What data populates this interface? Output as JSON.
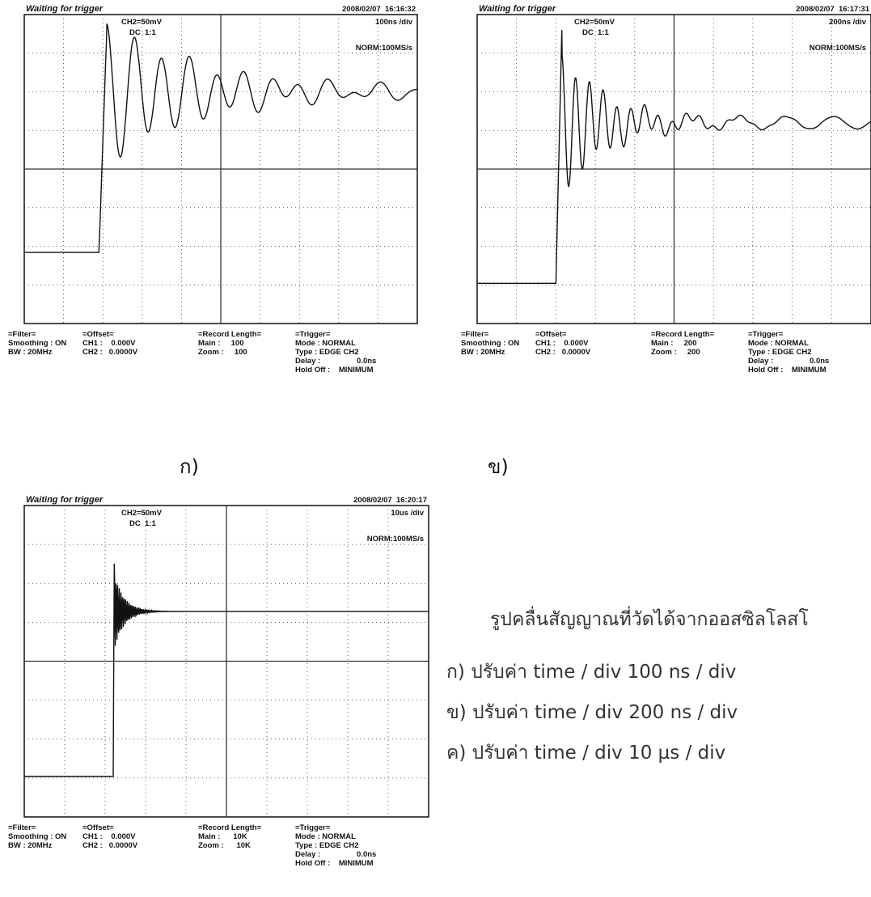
{
  "panels": [
    {
      "status": "Waiting for trigger",
      "datetime": "2008/02/07  16:16:32",
      "channel": "CH2=50mV",
      "coupling": "DC  1:1",
      "timebase": "100ns /div",
      "sampling": "NORM:100MS/s",
      "filter": [
        "=Filter=",
        "Smoothing : ON",
        "BW : 20MHz"
      ],
      "offset": [
        "=Offset=",
        "CH1 :    0.000V",
        "CH2 :   0.0000V"
      ],
      "record": [
        "=Record Length=",
        "Main :     100",
        "Zoom :     100"
      ],
      "trigger": [
        "=Trigger=",
        "Mode : NORMAL",
        "Type : EDGE CH2",
        "Delay :                 0.0ns",
        "Hold Off :    MINIMUM"
      ],
      "label": "ก)"
    },
    {
      "status": "Waiting for trigger",
      "datetime": "2008/02/07  16:17:31",
      "channel": "CH2=50mV",
      "coupling": "DC  1:1",
      "timebase": "200ns /div",
      "sampling": "NORM:100MS/s",
      "filter": [
        "=Filter=",
        "Smoothing : ON",
        "BW : 20MHz"
      ],
      "offset": [
        "=Offset=",
        "CH1 :    0.000V",
        "CH2 :   0.0000V"
      ],
      "record": [
        "=Record Length=",
        "Main :     200",
        "Zoom :     200"
      ],
      "trigger": [
        "=Trigger=",
        "Mode : NORMAL",
        "Type : EDGE CH2",
        "Delay :                 0.0ns",
        "Hold Off :    MINIMUM"
      ],
      "label": "ข)"
    },
    {
      "status": "Waiting for trigger",
      "datetime": "2008/02/07  16:20:17",
      "channel": "CH2=50mV",
      "coupling": "DC  1:1",
      "timebase": "10us /div",
      "sampling": "NORM:100MS/s",
      "filter": [
        "=Filter=",
        "Smoothing : ON",
        "BW : 20MHz"
      ],
      "offset": [
        "=Offset=",
        "CH1 :    0.000V",
        "CH2 :   0.0000V"
      ],
      "record": [
        "=Record Length=",
        "Main :      10K",
        "Zoom :      10K"
      ],
      "trigger": [
        "=Trigger=",
        "Mode : NORMAL",
        "Type : EDGE CH2",
        "Delay :                 0.0ns",
        "Hold Off :    MINIMUM"
      ]
    }
  ],
  "caption": {
    "title": "รูปคลื่นสัญญาณที่วัดได้จากออสซิลโลสโ",
    "lines": [
      "ก) ปรับค่า time / div 100 ns / div",
      "ข) ปรับค่า time / div 200 ns / div",
      "ค) ปรับค่า time / div 10 µs / div"
    ]
  }
}
